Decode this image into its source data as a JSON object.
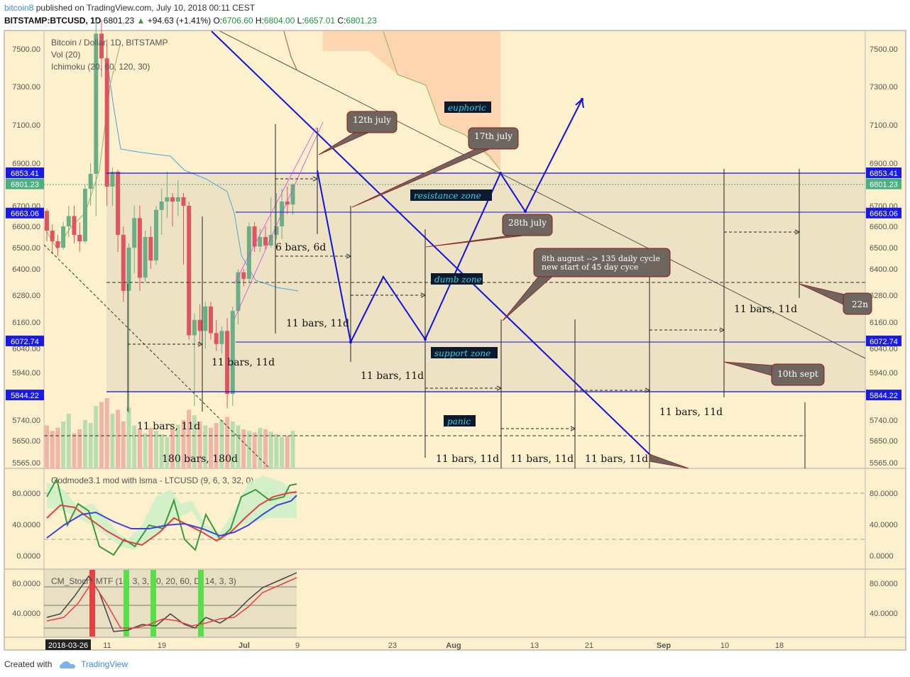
{
  "header": {
    "username": "bitcoin8",
    "published": "published on TradingView.com, July 10, 2018 00:11 CEST",
    "symbol": "BITSTAMP:BTCUSD, 1D",
    "last": "6801.23",
    "change": "+94.63 (+1.41%)",
    "o_label": "O:",
    "o": "6706.60",
    "h_label": "H:",
    "h": "6804.00",
    "l_label": "L:",
    "l": "6657.01",
    "c_label": "C:",
    "c": "6801.23"
  },
  "legend": {
    "series": "Bitcoin / Dollar, 1D, BITSTAMP",
    "vol": "Vol (20)",
    "ichimoku": "Ichimoku (20, 60, 120, 30)",
    "godmode": "Godmode3.1 mod with lsma - LTCUSD (9, 6, 3, 32, 0)",
    "cm": "CM_Stoch_MTF (14, 3, 3, 80, 20, 60, D, 14, 3, 3)"
  },
  "footer": {
    "created_with": "Created with",
    "brand": "TradingView"
  },
  "colors": {
    "background": "#fdf0cc",
    "zone": "#ede2c4",
    "euphoric": "#fdd5b0",
    "candle_up": "#6aaf85",
    "candle_down": "#e0545f",
    "drawing_blue": "#1010e0",
    "price_marker": "#1a1ae6",
    "current_price": "#4caf80"
  },
  "chart_data": {
    "type": "candlestick",
    "symbol": "BITSTAMP:BTCUSD",
    "timeframe": "1D",
    "price_axis": {
      "ticks": [
        "7500.00",
        "7300.00",
        "7100.00",
        "6900.00",
        "6700.00",
        "6600.00",
        "6500.00",
        "6400.00",
        "6280.00",
        "6160.00",
        "6040.00",
        "5940.00",
        "5740.00",
        "5650.00",
        "5565.00"
      ],
      "markers": [
        {
          "value": "6853.41",
          "kind": "level"
        },
        {
          "value": "6801.23",
          "kind": "current"
        },
        {
          "value": "6663.06",
          "kind": "level"
        },
        {
          "value": "6072.74",
          "kind": "level"
        },
        {
          "value": "5844.22",
          "kind": "level"
        }
      ]
    },
    "time_axis": {
      "labels": [
        "11",
        "19",
        "Jul",
        "9",
        "23",
        "Aug",
        "13",
        "21",
        "Sep",
        "10",
        "18"
      ],
      "cursor_label": "2018-03-26"
    },
    "annotations": {
      "callouts": [
        "12th july",
        "17th july",
        "28th july",
        "8th august --> 135 daily cycle",
        "new start of 45 day cyce",
        "10th sept",
        "22n"
      ],
      "zones": [
        "euphoric",
        "resistance zone",
        "dumb zone",
        "support zone",
        "panic"
      ],
      "bar_counts": [
        "6 bars, 6d",
        "11 bars, 11d",
        "11 bars, 11d",
        "11 bars, 11d",
        "11 bars, 11d",
        "180 bars, 180d",
        "11 bars, 11d",
        "11 bars, 11d",
        "11 bars, 11d",
        "11 bars, 11d",
        "11 bars, 11d"
      ]
    },
    "candles": [
      {
        "o": 6675,
        "h": 6685,
        "l": 6530,
        "c": 6580
      },
      {
        "o": 6580,
        "h": 6610,
        "l": 6470,
        "c": 6530
      },
      {
        "o": 6530,
        "h": 6560,
        "l": 6460,
        "c": 6500
      },
      {
        "o": 6500,
        "h": 6620,
        "l": 6490,
        "c": 6600
      },
      {
        "o": 6600,
        "h": 6700,
        "l": 6550,
        "c": 6650
      },
      {
        "o": 6650,
        "h": 6700,
        "l": 6520,
        "c": 6560
      },
      {
        "o": 6560,
        "h": 6620,
        "l": 6480,
        "c": 6530
      },
      {
        "o": 6530,
        "h": 6800,
        "l": 6520,
        "c": 6780
      },
      {
        "o": 6780,
        "h": 6900,
        "l": 6700,
        "c": 6850
      },
      {
        "o": 6850,
        "h": 7650,
        "l": 6650,
        "c": 7580
      },
      {
        "o": 7580,
        "h": 7650,
        "l": 7350,
        "c": 7450
      },
      {
        "o": 7450,
        "h": 7550,
        "l": 6700,
        "c": 6790
      },
      {
        "o": 6790,
        "h": 6880,
        "l": 6700,
        "c": 6860
      },
      {
        "o": 6860,
        "h": 6870,
        "l": 6480,
        "c": 6560
      },
      {
        "o": 6560,
        "h": 6600,
        "l": 6250,
        "c": 6300
      },
      {
        "o": 6300,
        "h": 6520,
        "l": 5770,
        "c": 6500
      },
      {
        "o": 6500,
        "h": 6700,
        "l": 6380,
        "c": 6640
      },
      {
        "o": 6640,
        "h": 6700,
        "l": 6300,
        "c": 6360
      },
      {
        "o": 6360,
        "h": 6580,
        "l": 6340,
        "c": 6550
      },
      {
        "o": 6550,
        "h": 6600,
        "l": 6400,
        "c": 6440
      },
      {
        "o": 6440,
        "h": 6700,
        "l": 6420,
        "c": 6680
      },
      {
        "o": 6680,
        "h": 6780,
        "l": 6560,
        "c": 6720
      },
      {
        "o": 6720,
        "h": 6860,
        "l": 6640,
        "c": 6740
      },
      {
        "o": 6740,
        "h": 6760,
        "l": 6600,
        "c": 6720
      },
      {
        "o": 6720,
        "h": 6820,
        "l": 6650,
        "c": 6740
      },
      {
        "o": 6740,
        "h": 6760,
        "l": 6420,
        "c": 6700
      },
      {
        "o": 6700,
        "h": 6720,
        "l": 6080,
        "c": 6100
      },
      {
        "o": 6100,
        "h": 6200,
        "l": 5800,
        "c": 6170
      },
      {
        "o": 6170,
        "h": 6240,
        "l": 6060,
        "c": 6120
      },
      {
        "o": 6120,
        "h": 6250,
        "l": 6040,
        "c": 6230
      },
      {
        "o": 6230,
        "h": 6250,
        "l": 6080,
        "c": 6110
      },
      {
        "o": 6110,
        "h": 6170,
        "l": 6030,
        "c": 6060
      },
      {
        "o": 6060,
        "h": 6140,
        "l": 6020,
        "c": 6120
      },
      {
        "o": 6120,
        "h": 6180,
        "l": 5790,
        "c": 5850
      },
      {
        "o": 5850,
        "h": 6230,
        "l": 5800,
        "c": 6210
      },
      {
        "o": 6210,
        "h": 6400,
        "l": 6150,
        "c": 6385
      },
      {
        "o": 6385,
        "h": 6400,
        "l": 6320,
        "c": 6355
      },
      {
        "o": 6355,
        "h": 6620,
        "l": 6340,
        "c": 6600
      },
      {
        "o": 6600,
        "h": 6620,
        "l": 6480,
        "c": 6505
      },
      {
        "o": 6505,
        "h": 6590,
        "l": 6480,
        "c": 6550
      },
      {
        "o": 6550,
        "h": 6600,
        "l": 6490,
        "c": 6510
      },
      {
        "o": 6510,
        "h": 6740,
        "l": 6500,
        "c": 6560
      },
      {
        "o": 6560,
        "h": 6760,
        "l": 6540,
        "c": 6600
      },
      {
        "o": 6600,
        "h": 6780,
        "l": 6540,
        "c": 6720
      },
      {
        "o": 6720,
        "h": 6790,
        "l": 6660,
        "c": 6706
      },
      {
        "o": 6706,
        "h": 6804,
        "l": 6657,
        "c": 6801
      }
    ],
    "volume": [
      55,
      48,
      52,
      60,
      70,
      45,
      50,
      62,
      58,
      80,
      85,
      90,
      70,
      75,
      60,
      78,
      55,
      50,
      45,
      52,
      48,
      44,
      40,
      50,
      56,
      62,
      75,
      68,
      60,
      55,
      52,
      58,
      62,
      66,
      60,
      55,
      50,
      48,
      46,
      52,
      50,
      47,
      44,
      40,
      42,
      48
    ],
    "godmode": {
      "axis_ticks": [
        "80.0000",
        "40.0000",
        "0.0000"
      ],
      "levels": [
        80,
        20
      ]
    },
    "cm_stoch": {
      "axis_ticks": [
        "80.0000",
        "40.0000"
      ],
      "levels": [
        80,
        40,
        20
      ]
    }
  }
}
